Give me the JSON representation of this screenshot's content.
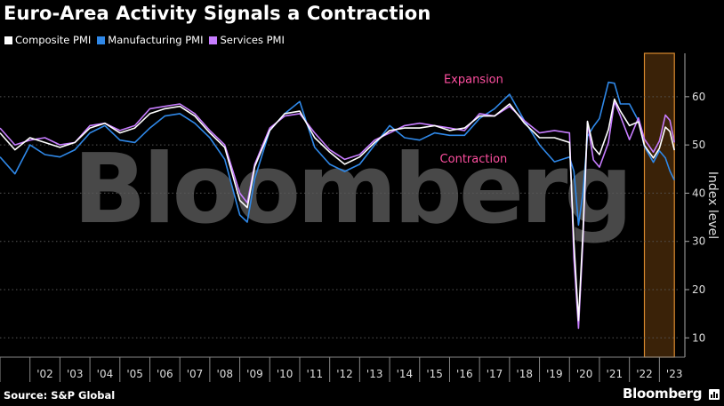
{
  "colors": {
    "composite": "#ffffff",
    "manufacturing": "#2f88e8",
    "services": "#c77dff",
    "annotation": "#ff4fa0",
    "highlight_fill": "#3a2208",
    "highlight_stroke": "#d98a2e",
    "watermark": "#5a5a5a"
  },
  "header": {
    "title": "Euro-Area Activity Signals a Contraction"
  },
  "footer": {
    "source": "Source: S&P Global",
    "brand": "Bloomberg"
  },
  "watermark": "Bloomberg",
  "chart_data": {
    "type": "line",
    "title": "Euro-Area Activity Signals a Contraction",
    "ylabel": "Index level",
    "ylim": [
      6,
      69
    ],
    "yticks": [
      10,
      20,
      30,
      40,
      50,
      60
    ],
    "xticks": [
      "'02",
      "'03",
      "'04",
      "'05",
      "'06",
      "'07",
      "'08",
      "'09",
      "'10",
      "'11",
      "'12",
      "'13",
      "'14",
      "'15",
      "'16",
      "'17",
      "'18",
      "'19",
      "'20",
      "'21",
      "'22",
      "'23"
    ],
    "grid": "horizontal dotted",
    "legend_position": "top-left",
    "annotations": [
      {
        "text": "Expansion",
        "x": 2016.8,
        "y": 62.8
      },
      {
        "text": "Contraction",
        "x": 2016.8,
        "y": 46.3
      }
    ],
    "highlight": {
      "x_from": 2022.5,
      "x_to": 2023.5
    },
    "series": [
      {
        "name": "Composite PMI",
        "color": "#ffffff",
        "x": [
          2001.0,
          2001.5,
          2002.0,
          2002.5,
          2003.0,
          2003.5,
          2004.0,
          2004.5,
          2005.0,
          2005.5,
          2006.0,
          2006.5,
          2007.0,
          2007.5,
          2008.0,
          2008.5,
          2009.0,
          2009.25,
          2009.5,
          2010.0,
          2010.5,
          2011.0,
          2011.5,
          2012.0,
          2012.5,
          2013.0,
          2013.5,
          2014.0,
          2014.5,
          2015.0,
          2015.5,
          2016.0,
          2016.5,
          2017.0,
          2017.5,
          2018.0,
          2018.5,
          2019.0,
          2019.5,
          2020.0,
          2020.15,
          2020.3,
          2020.45,
          2020.6,
          2020.8,
          2021.0,
          2021.3,
          2021.5,
          2021.7,
          2022.0,
          2022.3,
          2022.5,
          2022.8,
          2023.0,
          2023.2,
          2023.35,
          2023.5
        ],
        "y": [
          52.5,
          49.0,
          51.5,
          50.5,
          49.5,
          50.5,
          53.5,
          54.5,
          52.5,
          53.5,
          56.5,
          57.5,
          58.0,
          56.0,
          52.5,
          49.5,
          38.5,
          37.0,
          45.5,
          53.0,
          56.5,
          57.0,
          51.5,
          48.5,
          46.0,
          47.5,
          50.5,
          53.0,
          53.5,
          53.5,
          54.0,
          53.0,
          53.5,
          56.0,
          56.0,
          58.5,
          54.5,
          51.5,
          51.5,
          50.5,
          29.7,
          13.6,
          31.9,
          54.9,
          49.5,
          48.0,
          53.2,
          59.5,
          57.0,
          54.0,
          54.8,
          49.9,
          47.3,
          49.3,
          53.7,
          52.8,
          48.9
        ]
      },
      {
        "name": "Manufacturing PMI",
        "color": "#2f88e8",
        "x": [
          2001.0,
          2001.5,
          2002.0,
          2002.5,
          2003.0,
          2003.5,
          2004.0,
          2004.5,
          2005.0,
          2005.5,
          2006.0,
          2006.5,
          2007.0,
          2007.5,
          2008.0,
          2008.5,
          2009.0,
          2009.25,
          2009.5,
          2010.0,
          2010.5,
          2011.0,
          2011.5,
          2012.0,
          2012.5,
          2013.0,
          2013.5,
          2014.0,
          2014.5,
          2015.0,
          2015.5,
          2016.0,
          2016.5,
          2017.0,
          2017.5,
          2018.0,
          2018.5,
          2019.0,
          2019.5,
          2020.0,
          2020.15,
          2020.3,
          2020.45,
          2020.6,
          2020.8,
          2021.0,
          2021.3,
          2021.5,
          2021.7,
          2022.0,
          2022.3,
          2022.5,
          2022.8,
          2023.0,
          2023.2,
          2023.35,
          2023.5
        ],
        "y": [
          47.5,
          44.0,
          50.0,
          48.0,
          47.5,
          49.0,
          52.5,
          54.0,
          51.0,
          50.5,
          53.5,
          56.0,
          56.5,
          54.5,
          51.5,
          47.0,
          35.5,
          34.0,
          43.0,
          53.0,
          56.5,
          59.0,
          49.5,
          46.0,
          44.5,
          46.0,
          50.0,
          54.0,
          51.5,
          51.0,
          52.5,
          52.0,
          52.0,
          55.5,
          57.5,
          60.5,
          55.0,
          50.0,
          46.5,
          47.5,
          44.5,
          33.4,
          40.0,
          51.8,
          53.8,
          55.5,
          63.0,
          62.8,
          58.5,
          58.5,
          55.0,
          49.7,
          46.4,
          48.8,
          47.3,
          44.6,
          42.7
        ]
      },
      {
        "name": "Services PMI",
        "color": "#c77dff",
        "x": [
          2001.0,
          2001.5,
          2002.0,
          2002.5,
          2003.0,
          2003.5,
          2004.0,
          2004.5,
          2005.0,
          2005.5,
          2006.0,
          2006.5,
          2007.0,
          2007.5,
          2008.0,
          2008.5,
          2009.0,
          2009.25,
          2009.5,
          2010.0,
          2010.5,
          2011.0,
          2011.5,
          2012.0,
          2012.5,
          2013.0,
          2013.5,
          2014.0,
          2014.5,
          2015.0,
          2015.5,
          2016.0,
          2016.5,
          2017.0,
          2017.5,
          2018.0,
          2018.5,
          2019.0,
          2019.5,
          2020.0,
          2020.15,
          2020.3,
          2020.45,
          2020.6,
          2020.8,
          2021.0,
          2021.3,
          2021.5,
          2021.7,
          2022.0,
          2022.3,
          2022.5,
          2022.8,
          2023.0,
          2023.2,
          2023.35,
          2023.5
        ],
        "y": [
          53.5,
          50.0,
          51.0,
          51.5,
          50.0,
          50.5,
          54.0,
          54.5,
          53.0,
          54.0,
          57.5,
          58.0,
          58.5,
          56.5,
          53.0,
          50.0,
          40.0,
          38.0,
          46.0,
          53.5,
          56.0,
          56.5,
          52.5,
          49.0,
          47.0,
          48.0,
          51.0,
          52.5,
          54.0,
          54.5,
          54.0,
          53.5,
          53.0,
          56.5,
          56.0,
          58.0,
          55.0,
          52.5,
          53.0,
          52.5,
          26.4,
          12.0,
          30.0,
          54.7,
          46.9,
          45.4,
          50.5,
          59.0,
          56.0,
          51.1,
          55.6,
          51.2,
          48.5,
          50.8,
          56.2,
          55.1,
          50.5
        ]
      }
    ]
  }
}
